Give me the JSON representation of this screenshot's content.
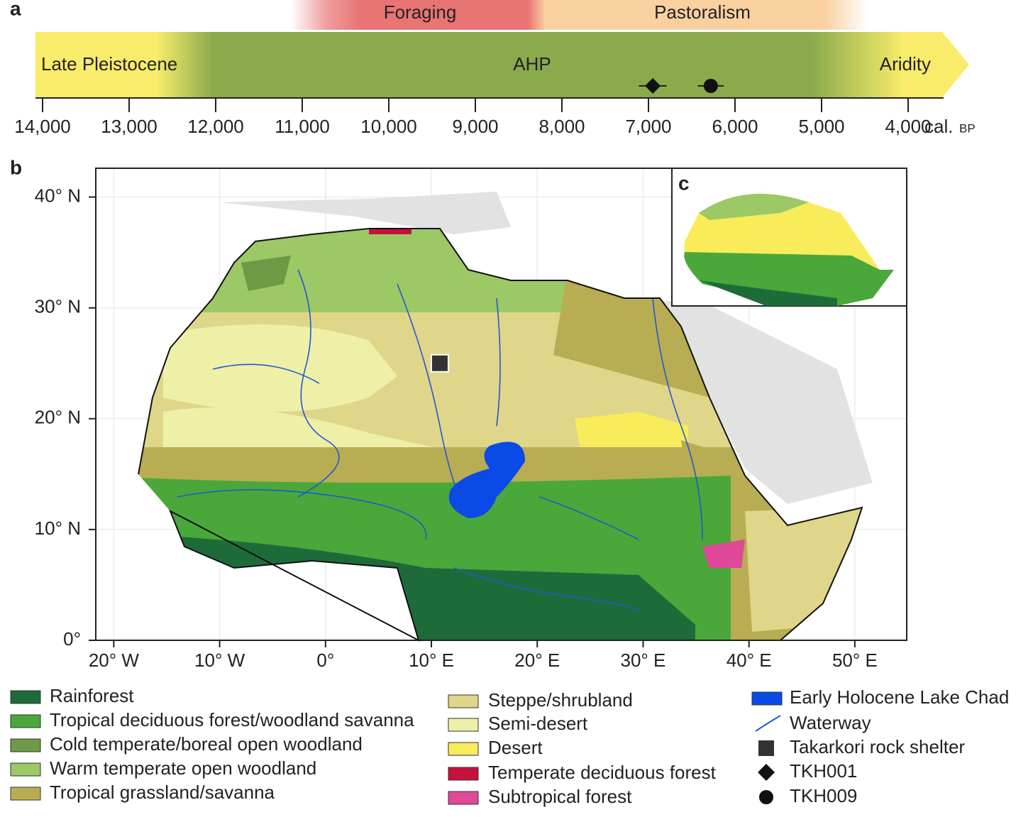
{
  "panel_a": {
    "label": "a",
    "phases": [
      "Foraging",
      "Pastoralism"
    ],
    "periods": [
      "Late Pleistocene",
      "AHP",
      "Aridity"
    ],
    "xlim": [
      14000,
      4000
    ],
    "xticks": [
      {
        "value": 14000,
        "label": "14,000"
      },
      {
        "value": 13000,
        "label": "13,000"
      },
      {
        "value": 12000,
        "label": "12,000"
      },
      {
        "value": 11000,
        "label": "11,000"
      },
      {
        "value": 10000,
        "label": "10,000"
      },
      {
        "value": 9000,
        "label": "9,000"
      },
      {
        "value": 8000,
        "label": "8,000"
      },
      {
        "value": 7000,
        "label": "7,000"
      },
      {
        "value": 6000,
        "label": "6,000"
      },
      {
        "value": 5000,
        "label": "5,000"
      },
      {
        "value": 4000,
        "label": "4,000"
      }
    ],
    "axis_unit": "cal.",
    "axis_unit_small": "BP",
    "sample_dates": [
      {
        "value": 6950,
        "error": 160
      },
      {
        "value": 6280,
        "error": 150
      }
    ]
  },
  "panel_b": {
    "label": "b",
    "inset_label": "c",
    "xlim": [
      -21.7,
      54.9
    ],
    "ylim": [
      0,
      42.6
    ],
    "xticks": [
      {
        "value": -20,
        "label": "20° W"
      },
      {
        "value": -10,
        "label": "10° W"
      },
      {
        "value": 0,
        "label": "0°"
      },
      {
        "value": 10,
        "label": "10° E"
      },
      {
        "value": 20,
        "label": "20° E"
      },
      {
        "value": 30,
        "label": "30° E"
      },
      {
        "value": 40,
        "label": "40° E"
      },
      {
        "value": 50,
        "label": "50° E"
      }
    ],
    "yticks": [
      {
        "value": 0,
        "label": "0°"
      },
      {
        "value": 10,
        "label": "10° N"
      },
      {
        "value": 20,
        "label": "20° N"
      },
      {
        "value": 30,
        "label": "30° N"
      },
      {
        "value": 40,
        "label": "40° N"
      }
    ],
    "site": {
      "lon": 10.8,
      "lat": 25
    },
    "legend": [
      {
        "name": "Rainforest",
        "color": "#1e6b3a",
        "symbol": "rect"
      },
      {
        "name": "Tropical deciduous forest/woodland savanna",
        "color": "#4aa83a",
        "symbol": "rect"
      },
      {
        "name": "Cold temperate/boreal open woodland",
        "color": "#6e9a45",
        "symbol": "rect"
      },
      {
        "name": "Warm temperate open woodland",
        "color": "#9cc866",
        "symbol": "rect"
      },
      {
        "name": "Tropical grassland/savanna",
        "color": "#b8ad52",
        "symbol": "rect"
      },
      {
        "name": "Steppe/shrubland",
        "color": "#e0d68a",
        "symbol": "rect"
      },
      {
        "name": "Semi-desert",
        "color": "#eef0a8",
        "symbol": "rect"
      },
      {
        "name": "Desert",
        "color": "#f8ec5a",
        "symbol": "rect"
      },
      {
        "name": "Temperate deciduous forest",
        "color": "#c8103c",
        "symbol": "rect"
      },
      {
        "name": "Subtropical forest",
        "color": "#e0489a",
        "symbol": "rect"
      },
      {
        "name": "Early Holocene Lake Chad",
        "color": "#0a4ae6",
        "symbol": "rect"
      },
      {
        "name": "Waterway",
        "color": "#1f5acc",
        "symbol": "line"
      },
      {
        "name": "Takarkori rock shelter",
        "color": "#333333",
        "symbol": "square"
      },
      {
        "name": "TKH001",
        "color": "#111111",
        "symbol": "diamond"
      },
      {
        "name": "TKH009",
        "color": "#111111",
        "symbol": "circle"
      }
    ]
  }
}
